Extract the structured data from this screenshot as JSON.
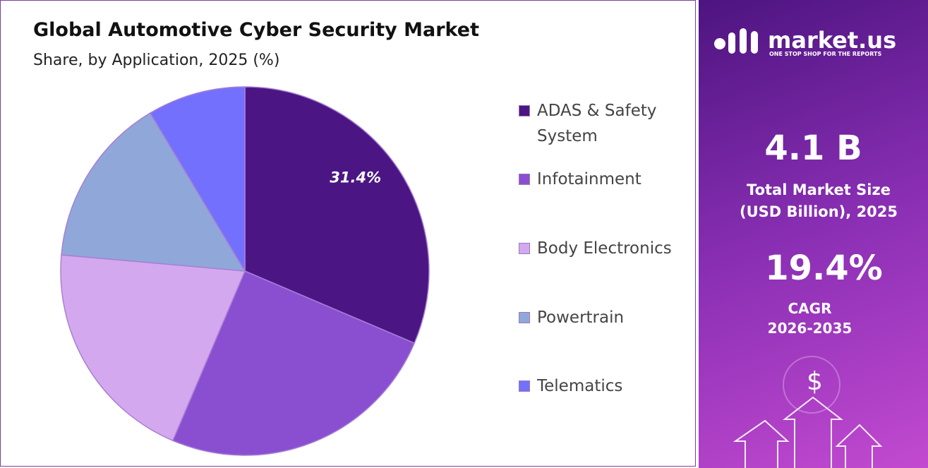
{
  "chart_data": {
    "type": "pie",
    "title": "Global Automotive Cyber Security Market",
    "subtitle": "Share, by Application, 2025 (%)",
    "categories": [
      "ADAS & Safety System",
      "Infotainment",
      "Body Electronics",
      "Powertrain",
      "Telematics"
    ],
    "values": [
      31.4,
      25.0,
      20.0,
      15.0,
      8.6
    ],
    "value_labels": [
      "31.4%",
      null,
      null,
      null,
      null
    ],
    "colors": [
      "#4b1683",
      "#8a4fd0",
      "#d4a8ee",
      "#8fa8d9",
      "#7370fe"
    ]
  },
  "side_panel": {
    "brand": "market.us",
    "tagline": "ONE STOP SHOP FOR THE REPORTS",
    "market_size": "4.1 B",
    "market_size_label": "Total Market Size (USD Billion), 2025",
    "cagr": "19.4%",
    "cagr_label": "CAGR",
    "cagr_period": "2026-2035",
    "currency_icon": "$"
  }
}
